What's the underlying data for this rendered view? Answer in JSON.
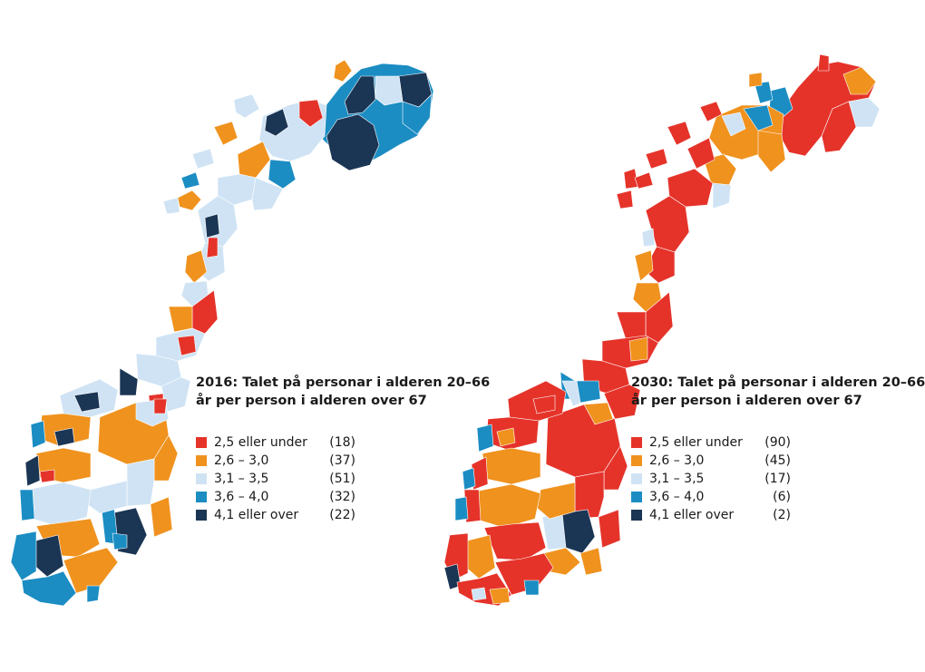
{
  "colors": {
    "red": "#e5332a",
    "orange": "#f0921e",
    "light_blue": "#cfe3f4",
    "blue": "#1b8dc3",
    "navy": "#1b3554"
  },
  "left": {
    "title_line1": "2016: Talet på personar i alderen 20–66",
    "title_line2": "år per person i alderen over 67",
    "legend": [
      {
        "label": "2,5 eller under",
        "count": "(18)",
        "color": "#e5332a"
      },
      {
        "label": "2,6 – 3,0",
        "count": "(37)",
        "color": "#f0921e"
      },
      {
        "label": "3,1 – 3,5",
        "count": "(51)",
        "color": "#cfe3f4"
      },
      {
        "label": "3,6 – 4,0",
        "count": "(32)",
        "color": "#1b8dc3"
      },
      {
        "label": "4,1 eller over",
        "count": "(22)",
        "color": "#1b3554"
      }
    ]
  },
  "right": {
    "title_line1": "2030: Talet på personar i alderen 20–66",
    "title_line2": "år per person i alderen over 67",
    "legend": [
      {
        "label": "2,5 eller under",
        "count": "(90)",
        "color": "#e5332a"
      },
      {
        "label": "2,6 – 3,0",
        "count": "(45)",
        "color": "#f0921e"
      },
      {
        "label": "3,1 – 3,5",
        "count": "(17)",
        "color": "#cfe3f4"
      },
      {
        "label": "3,6 – 4,0",
        "count": "(6)",
        "color": "#1b8dc3"
      },
      {
        "label": "4,1 eller over",
        "count": "(2)",
        "color": "#1b3554"
      }
    ]
  }
}
